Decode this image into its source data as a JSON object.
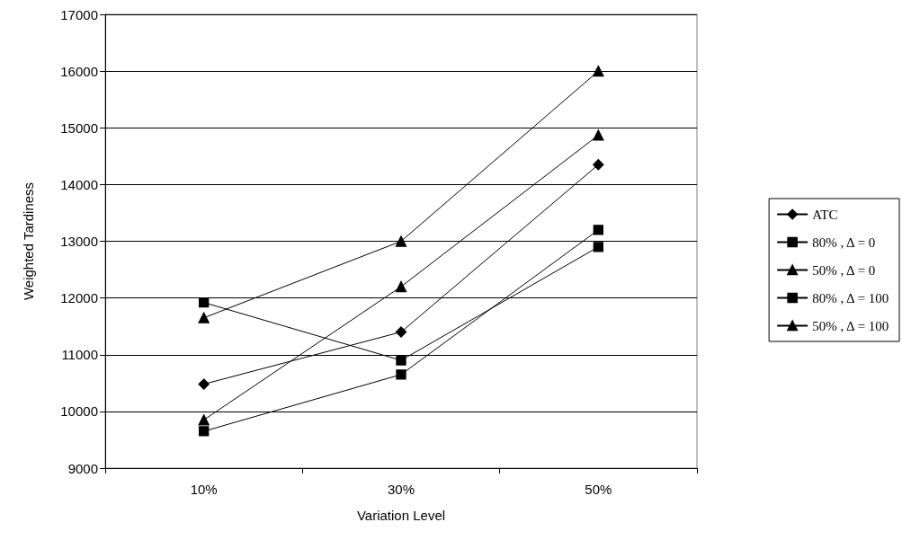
{
  "chart_data": {
    "type": "line",
    "xlabel": "Variation Level",
    "ylabel": "Weighted Tardiness",
    "categories": [
      "10%",
      "30%",
      "50%"
    ],
    "series": [
      {
        "name": "ATC",
        "color": "#000000",
        "marker": "diamond",
        "values": [
          10480,
          11400,
          14350
        ]
      },
      {
        "name": "80% , Δ = 0",
        "color": "#000000",
        "marker": "square",
        "values": [
          11920,
          10900,
          12900
        ]
      },
      {
        "name": "50% , Δ = 0",
        "color": "#000000",
        "marker": "triangle",
        "values": [
          11650,
          13000,
          16000
        ]
      },
      {
        "name": "80% , Δ = 100",
        "color": "#000000",
        "marker": "square",
        "values": [
          9650,
          10650,
          13200
        ]
      },
      {
        "name": "50% , Δ = 100",
        "color": "#000000",
        "marker": "triangle",
        "values": [
          9850,
          12200,
          14870
        ]
      }
    ],
    "ylim": [
      9000,
      17000
    ],
    "yticks": [
      9000,
      10000,
      11000,
      12000,
      13000,
      14000,
      15000,
      16000,
      17000
    ],
    "grid": "y",
    "legend": "right",
    "line_style": "solid"
  }
}
